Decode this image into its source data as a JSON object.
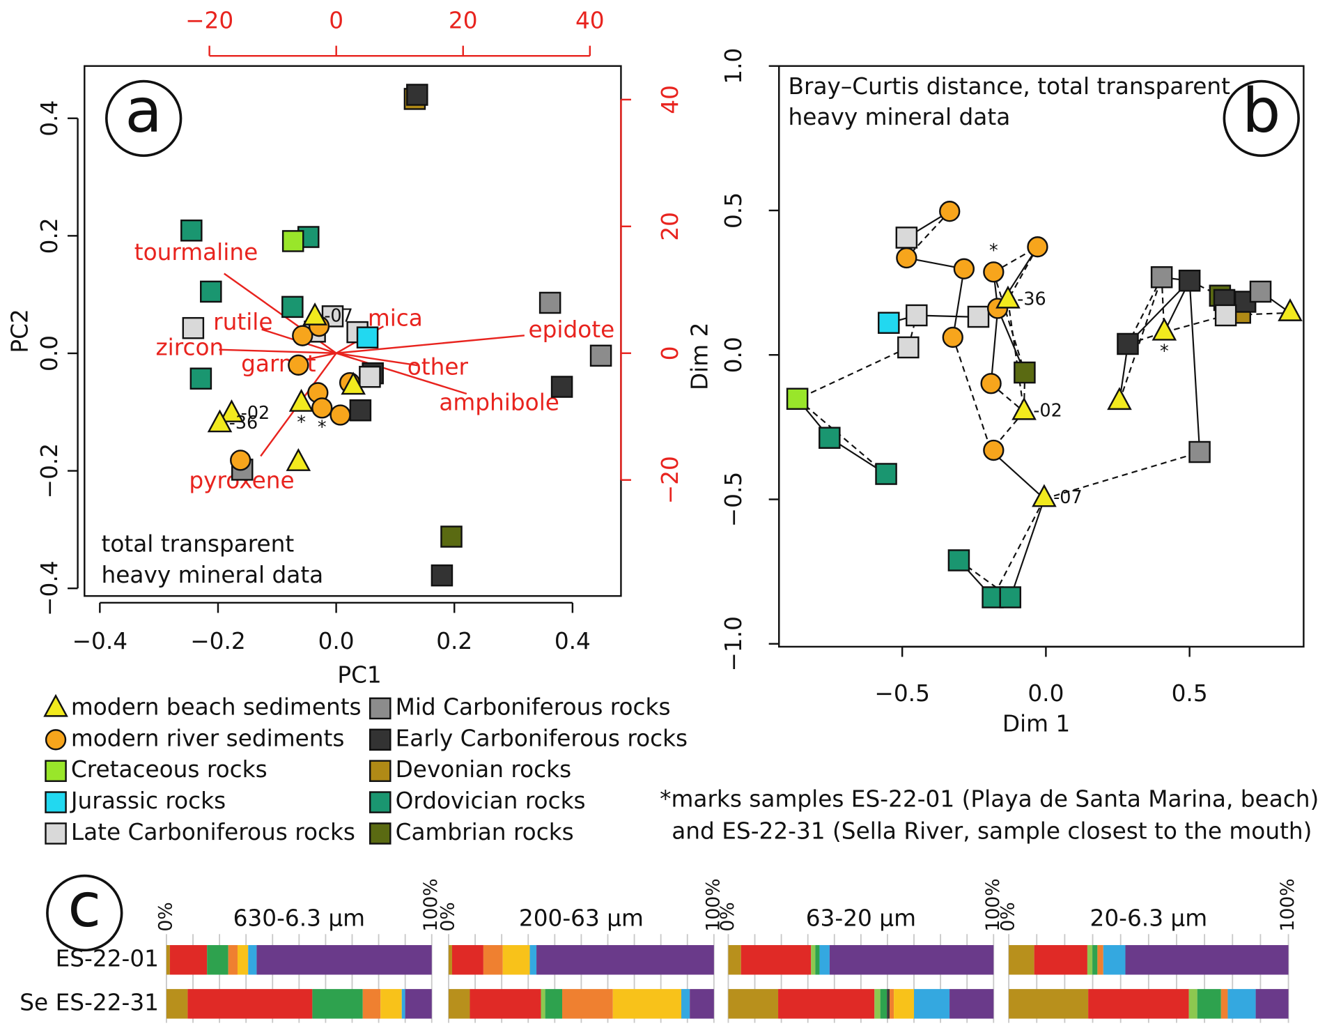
{
  "chart_data": [
    {
      "type": "scatter",
      "panel_label": "a",
      "xlabel": "PC1",
      "ylabel": "PC2",
      "annotation": [
        "total transparent",
        "heavy mineral data"
      ],
      "xlim": [
        -0.426,
        0.482
      ],
      "ylim": [
        -0.413,
        0.489
      ],
      "xticks": [
        {
          "value": -0.4,
          "label": "−0.4"
        },
        {
          "value": -0.2,
          "label": "−0.2"
        },
        {
          "value": 0,
          "label": "0.0"
        },
        0.2,
        0.4
      ],
      "yticks": [
        {
          "value": -0.4,
          "label": "−0.4"
        },
        {
          "value": -0.2,
          "label": "−0.2"
        },
        {
          "value": 0,
          "label": "0.0"
        },
        0.2,
        0.4
      ],
      "x2lim": [
        -39.7,
        44.9
      ],
      "x2ticks": [
        {
          "value": -20,
          "label": "−20"
        },
        0,
        20,
        40
      ],
      "y2lim": [
        -38.3,
        45.3
      ],
      "y2ticks": [
        {
          "value": -20,
          "label": "−20"
        },
        0,
        20,
        40
      ],
      "secondary_color": "#e8231e",
      "loadings": {
        "names": [
          "tourmaline",
          "rutile",
          "zircon",
          "garnet",
          "mica",
          "epidote",
          "other",
          "amphibole",
          "pyroxene"
        ],
        "x": [
          -22.1,
          -14.7,
          -23.1,
          -9.1,
          9.3,
          37.1,
          16,
          25.7,
          -14.9
        ],
        "y": [
          15.7,
          4.7,
          0.7,
          -1.9,
          5.3,
          3.5,
          -2.4,
          -8,
          -20.3
        ]
      },
      "series": [
        {
          "name": "modern beach sediments",
          "marker": "triangle",
          "color": "#f2ea1e",
          "x": [
            -0.036,
            0.029,
            -0.059,
            -0.177,
            -0.197,
            -0.064
          ],
          "y": [
            0.062,
            -0.056,
            -0.085,
            -0.103,
            -0.12,
            -0.186
          ],
          "point_labels": [
            "-07",
            null,
            "*",
            "-02",
            "-36",
            null
          ]
        },
        {
          "name": "modern river sediments",
          "marker": "circle",
          "color": "#f7a51c",
          "x": [
            -0.057,
            -0.029,
            -0.064,
            -0.031,
            -0.024,
            0.007,
            0.023,
            -0.162
          ],
          "y": [
            0.03,
            0.046,
            -0.02,
            -0.067,
            -0.093,
            -0.105,
            -0.05,
            -0.182
          ],
          "point_labels": [
            null,
            null,
            null,
            null,
            "*",
            null,
            null,
            null
          ]
        },
        {
          "name": "Cretaceous rocks",
          "marker": "square",
          "color": "#99e62a",
          "x": [
            -0.073
          ],
          "y": [
            0.191
          ]
        },
        {
          "name": "Jurassic rocks",
          "marker": "square",
          "color": "#22d8f0",
          "x": [
            0.053
          ],
          "y": [
            0.027
          ]
        },
        {
          "name": "Late Carboniferous rocks",
          "marker": "square",
          "color": "#d9d9d9",
          "x": [
            -0.242,
            -0.006,
            0.036,
            0.057,
            -0.036
          ],
          "y": [
            0.043,
            0.063,
            0.036,
            -0.04,
            0.037
          ]
        },
        {
          "name": "Mid Carboniferous rocks",
          "marker": "square",
          "color": "#8c8c8c",
          "x": [
            0.362,
            0.448,
            -0.159
          ],
          "y": [
            0.086,
            -0.004,
            -0.198
          ]
        },
        {
          "name": "Early Carboniferous rocks",
          "marker": "square",
          "color": "#333333",
          "x": [
            0.137,
            0.382,
            0.041,
            0.062,
            0.179
          ],
          "y": [
            0.44,
            -0.057,
            -0.097,
            -0.034,
            -0.378
          ]
        },
        {
          "name": "Devonian rocks",
          "marker": "square",
          "color": "#b08a16",
          "x": [
            0.133
          ],
          "y": [
            0.433
          ]
        },
        {
          "name": "Ordovician rocks",
          "marker": "square",
          "color": "#1a9670",
          "x": [
            -0.245,
            -0.212,
            -0.047,
            -0.074,
            -0.229
          ],
          "y": [
            0.209,
            0.105,
            0.198,
            0.079,
            -0.043
          ]
        },
        {
          "name": "Cambrian rocks",
          "marker": "square",
          "color": "#5a6a12",
          "x": [
            0.195
          ],
          "y": [
            -0.312
          ]
        }
      ]
    },
    {
      "type": "scatter",
      "panel_label": "b",
      "xlabel": "Dim 1",
      "ylabel": "Dim 2",
      "annotation": [
        "Bray–Curtis distance, total transparent",
        "heavy mineral data"
      ],
      "xlim": [
        -0.929,
        0.897
      ],
      "ylim": [
        -1.01,
        1.0
      ],
      "xticks": [
        {
          "value": -0.5,
          "label": "−0.5"
        },
        {
          "value": 0,
          "label": "0.0"
        },
        0.5
      ],
      "yticks": [
        {
          "value": -1,
          "label": "−1.0"
        },
        {
          "value": -0.5,
          "label": "−0.5"
        },
        {
          "value": 0,
          "label": "0.0"
        },
        0.5,
        {
          "value": 1,
          "label": "1.0"
        }
      ],
      "series": [
        {
          "marker": "triangle",
          "color": "#f2ea1e",
          "x": [
            -0.132,
            -0.076,
            -0.006,
            0.412,
            0.256,
            0.85
          ],
          "y": [
            0.19,
            -0.196,
            -0.497,
            0.079,
            -0.161,
            0.146
          ],
          "point_labels": [
            "-36",
            "-02",
            "-07",
            "*",
            null,
            null
          ]
        },
        {
          "marker": "circle",
          "color": "#f7a51c",
          "x": [
            -0.335,
            -0.485,
            -0.285,
            -0.182,
            -0.029,
            -0.168,
            -0.324,
            -0.191,
            -0.182
          ],
          "y": [
            0.497,
            0.336,
            0.298,
            0.287,
            0.374,
            0.161,
            0.061,
            -0.099,
            -0.33
          ],
          "point_labels": [
            null,
            null,
            null,
            "*",
            null,
            null,
            null,
            null,
            null
          ]
        },
        {
          "marker": "square",
          "color": "#99e62a",
          "x": [
            -0.865
          ],
          "y": [
            -0.152
          ]
        },
        {
          "marker": "square",
          "color": "#22d8f0",
          "x": [
            -0.547
          ],
          "y": [
            0.111
          ]
        },
        {
          "marker": "square",
          "color": "#d9d9d9",
          "x": [
            -0.485,
            -0.45,
            -0.479,
            -0.235,
            0.626
          ],
          "y": [
            0.406,
            0.137,
            0.026,
            0.132,
            0.137
          ]
        },
        {
          "marker": "square",
          "color": "#8c8c8c",
          "x": [
            0.403,
            0.535,
            0.747
          ],
          "y": [
            0.269,
            -0.336,
            0.219
          ]
        },
        {
          "marker": "square",
          "color": "#333333",
          "x": [
            0.5,
            0.285,
            0.621,
            0.694
          ],
          "y": [
            0.257,
            0.038,
            0.19,
            0.184
          ]
        },
        {
          "marker": "square",
          "color": "#b08a16",
          "x": [
            0.676
          ],
          "y": [
            0.146
          ]
        },
        {
          "marker": "square",
          "color": "#1a9670",
          "x": [
            -0.753,
            -0.556,
            -0.303,
            -0.185,
            -0.124
          ],
          "y": [
            -0.287,
            -0.412,
            -0.711,
            -0.839,
            -0.839
          ]
        },
        {
          "marker": "square",
          "color": "#5a6a12",
          "x": [
            -0.074,
            0.606
          ],
          "y": [
            -0.061,
            0.205
          ]
        }
      ]
    },
    {
      "type": "stacked_barh",
      "panel_label": "c",
      "title": "630-6.3 µm",
      "categories": [
        "ES-22-01",
        "Se ES-22-31"
      ],
      "xlim": [
        0,
        100
      ],
      "xticks": [
        {
          "value": 0,
          "label": "0%"
        },
        {
          "value": 100,
          "label": "100%"
        }
      ],
      "minor_xticks": [
        10,
        20,
        30,
        40,
        50,
        60,
        70,
        80,
        90
      ],
      "series": [
        {
          "color": "#b8901c",
          "values": [
            1.3,
            8
          ]
        },
        {
          "color": "#e02a26",
          "values": [
            14,
            47
          ]
        },
        {
          "color": "#8cc850",
          "values": [
            0,
            0
          ]
        },
        {
          "color": "#2ea24e",
          "values": [
            8,
            19
          ]
        },
        {
          "color": "#3a3a3a",
          "values": [
            0,
            0
          ]
        },
        {
          "color": "#ef8030",
          "values": [
            3.5,
            6.7
          ]
        },
        {
          "color": "#f8c21a",
          "values": [
            4,
            8
          ]
        },
        {
          "color": "#34a8e0",
          "values": [
            3.2,
            1.3
          ]
        },
        {
          "color": "#6a3a8a",
          "values": [
            66,
            10
          ]
        }
      ]
    },
    {
      "type": "stacked_barh",
      "title": "200-63 µm",
      "xlim": [
        0,
        100
      ],
      "xticks": [
        {
          "value": 0,
          "label": "0%"
        },
        {
          "value": 100,
          "label": "100%"
        }
      ],
      "minor_xticks": [
        10,
        20,
        30,
        40,
        50,
        60,
        70,
        80,
        90
      ],
      "series": [
        {
          "color": "#b8901c",
          "values": [
            1.3,
            8
          ]
        },
        {
          "color": "#e02a26",
          "values": [
            11.8,
            26.8
          ]
        },
        {
          "color": "#8cc850",
          "values": [
            0,
            1.6
          ]
        },
        {
          "color": "#2ea24e",
          "values": [
            0,
            6.4
          ]
        },
        {
          "color": "#3a3a3a",
          "values": [
            0,
            0
          ]
        },
        {
          "color": "#ef8030",
          "values": [
            7.3,
            19.1
          ]
        },
        {
          "color": "#f8c21a",
          "values": [
            10.2,
            25.8
          ]
        },
        {
          "color": "#34a8e0",
          "values": [
            2.5,
            3.2
          ]
        },
        {
          "color": "#6a3a8a",
          "values": [
            66.9,
            9.1
          ]
        }
      ]
    },
    {
      "type": "stacked_barh",
      "title": "63-20 µm",
      "xlim": [
        0,
        100
      ],
      "xticks": [
        {
          "value": 0,
          "label": "0%"
        },
        {
          "value": 100,
          "label": "100%"
        }
      ],
      "minor_xticks": [
        10,
        20,
        30,
        40,
        50,
        60,
        70,
        80,
        90
      ],
      "series": [
        {
          "color": "#b8901c",
          "values": [
            4.8,
            18.8
          ]
        },
        {
          "color": "#e02a26",
          "values": [
            26.4,
            36.3
          ]
        },
        {
          "color": "#8cc850",
          "values": [
            1.6,
            2.2
          ]
        },
        {
          "color": "#2ea24e",
          "values": [
            1.6,
            2.5
          ]
        },
        {
          "color": "#3a3a3a",
          "values": [
            0,
            1.0
          ]
        },
        {
          "color": "#ef8030",
          "values": [
            0,
            1.6
          ]
        },
        {
          "color": "#f8c21a",
          "values": [
            0,
            7.6
          ]
        },
        {
          "color": "#34a8e0",
          "values": [
            3.8,
            13.4
          ]
        },
        {
          "color": "#6a3a8a",
          "values": [
            61.8,
            16.6
          ]
        }
      ]
    },
    {
      "type": "stacked_barh",
      "title": "20-6.3 µm",
      "xlim": [
        0,
        100
      ],
      "xticks": [
        {
          "value": 0,
          "label": "0%"
        },
        {
          "value": 100,
          "label": "100%"
        }
      ],
      "minor_xticks": [
        10,
        20,
        30,
        40,
        50,
        60,
        70,
        80,
        90
      ],
      "series": [
        {
          "color": "#b8901c",
          "values": [
            9.1,
            28.4
          ]
        },
        {
          "color": "#e02a26",
          "values": [
            19,
            36
          ]
        },
        {
          "color": "#8cc850",
          "values": [
            1.8,
            3
          ]
        },
        {
          "color": "#2ea24e",
          "values": [
            1.8,
            8.5
          ]
        },
        {
          "color": "#3a3a3a",
          "values": [
            0,
            0
          ]
        },
        {
          "color": "#ef8030",
          "values": [
            2.1,
            2.4
          ]
        },
        {
          "color": "#f8c21a",
          "values": [
            0,
            0
          ]
        },
        {
          "color": "#34a8e0",
          "values": [
            7.9,
            10
          ]
        },
        {
          "color": "#6a3a8a",
          "values": [
            58.3,
            11.7
          ]
        }
      ]
    }
  ],
  "note": [
    "*marks samples ES-22-01 (Playa de Santa Marina, beach)",
    "and ES-22-31 (Sella River, sample closest to the mouth)"
  ]
}
